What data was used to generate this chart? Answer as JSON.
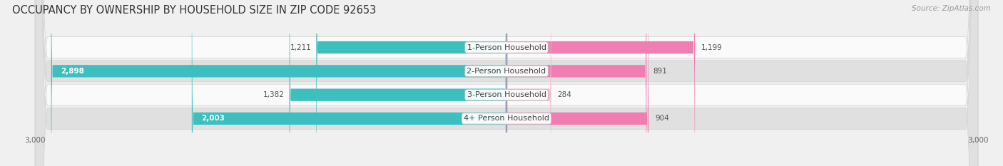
{
  "title": "OCCUPANCY BY OWNERSHIP BY HOUSEHOLD SIZE IN ZIP CODE 92653",
  "source": "Source: ZipAtlas.com",
  "categories": [
    "1-Person Household",
    "2-Person Household",
    "3-Person Household",
    "4+ Person Household"
  ],
  "owner_values": [
    1211,
    2898,
    1382,
    2003
  ],
  "renter_values": [
    1199,
    891,
    284,
    904
  ],
  "owner_color": "#3DBFBF",
  "renter_color": "#F07EB0",
  "renter_color_light": "#F5B8D0",
  "axis_max": 3000,
  "bar_height": 0.52,
  "background_color": "#f0f0f0",
  "row_colors": [
    "#fafafa",
    "#e0e0e0",
    "#fafafa",
    "#e0e0e0"
  ],
  "title_fontsize": 10.5,
  "label_fontsize": 8,
  "value_fontsize": 7.5,
  "legend_fontsize": 8,
  "source_fontsize": 7.5,
  "owner_label_threshold": 1500
}
